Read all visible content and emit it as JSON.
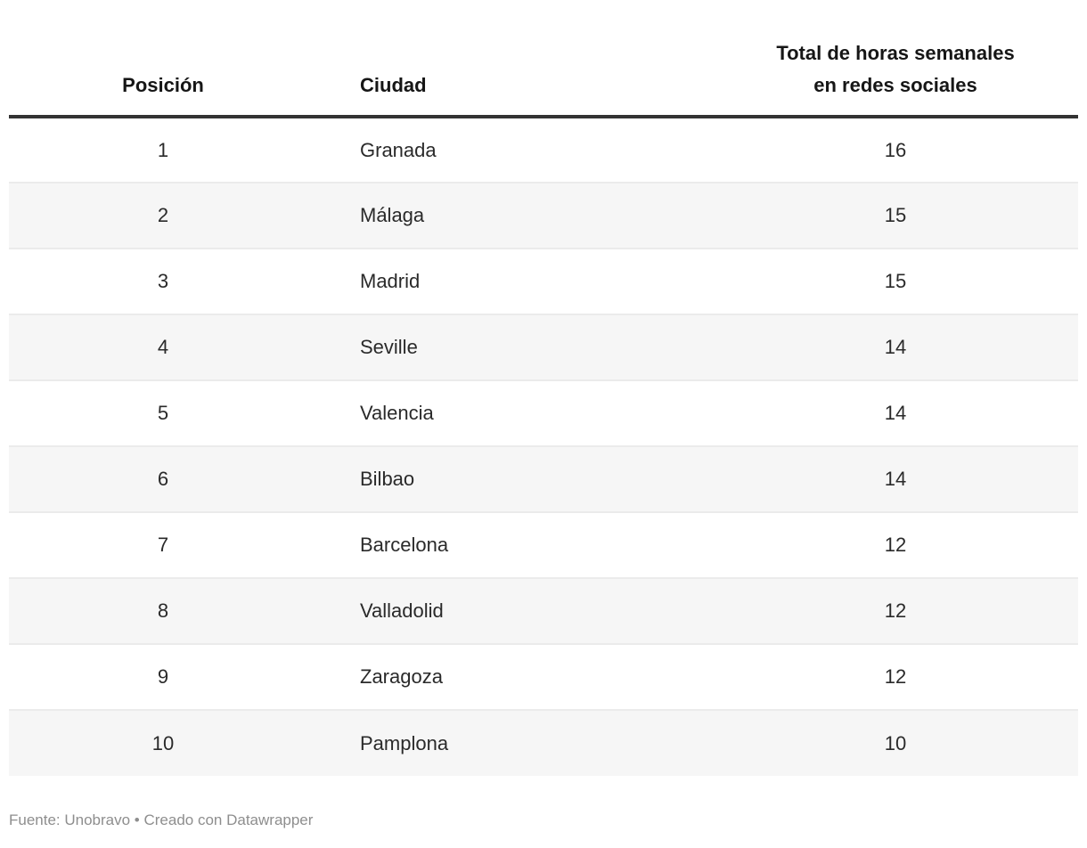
{
  "chart_data": {
    "type": "table",
    "columns": [
      {
        "label": "Posición",
        "align": "center"
      },
      {
        "label": "Ciudad",
        "align": "left"
      },
      {
        "label": "Total de horas semanales en redes sociales",
        "label_lines": [
          "Total de horas semanales",
          "en redes sociales"
        ],
        "align": "center"
      }
    ],
    "rows": [
      [
        1,
        "Granada",
        16
      ],
      [
        2,
        "Málaga",
        15
      ],
      [
        3,
        "Madrid",
        15
      ],
      [
        4,
        "Seville",
        14
      ],
      [
        5,
        "Valencia",
        14
      ],
      [
        6,
        "Bilbao",
        14
      ],
      [
        7,
        "Barcelona",
        12
      ],
      [
        8,
        "Valladolid",
        12
      ],
      [
        9,
        "Zaragoza",
        12
      ],
      [
        10,
        "Pamplona",
        10
      ]
    ],
    "source": "Fuente: Unobravo",
    "attribution": "Creado con Datawrapper"
  },
  "footer": {
    "text": "Fuente: Unobravo • Creado con Datawrapper"
  },
  "colors": {
    "header_rule": "#333333",
    "zebra_stripe": "#f6f6f6",
    "row_border": "#ebebeb",
    "body_text": "#2a2a2a",
    "header_text": "#161616",
    "footer_text": "#8e8e8e",
    "background": "#ffffff"
  }
}
